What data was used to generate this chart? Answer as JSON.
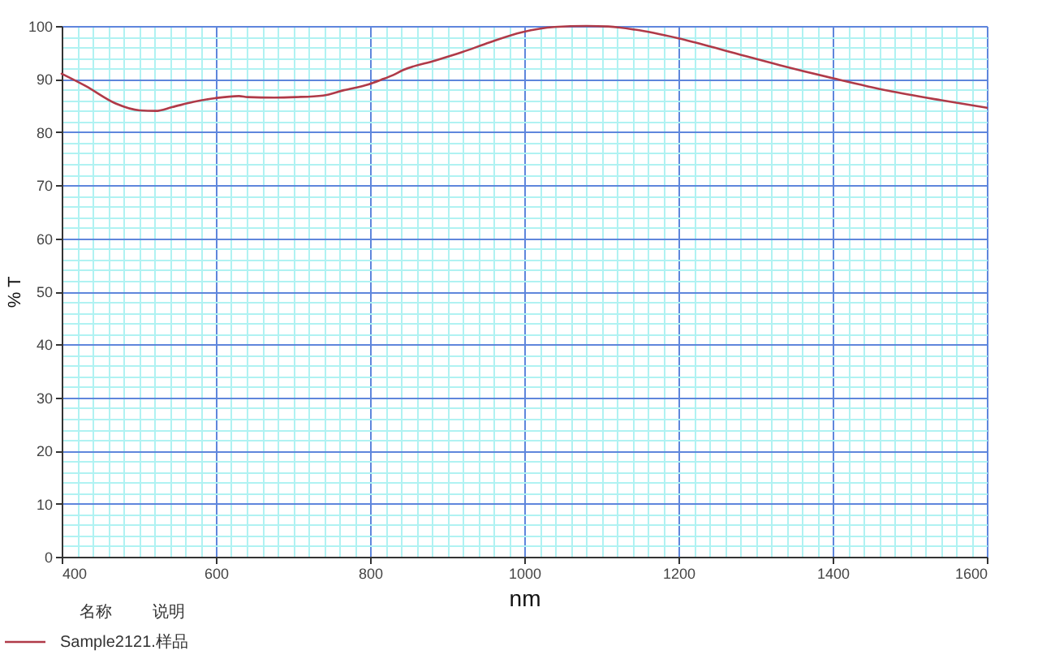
{
  "chart_data": {
    "type": "line",
    "xlabel": "nm",
    "ylabel": "% T",
    "legend_title": "名称",
    "annotations": [
      "说明"
    ],
    "xlim": [
      400,
      1600
    ],
    "xticks": [
      400,
      {
        "value": 420,
        "label": null
      },
      {
        "value": 440,
        "label": null
      },
      {
        "value": 460,
        "label": null
      },
      {
        "value": 480,
        "label": null
      },
      {
        "value": 500,
        "label": null
      },
      {
        "value": 520,
        "label": null
      },
      {
        "value": 540,
        "label": null
      },
      {
        "value": 560,
        "label": null
      },
      {
        "value": 580,
        "label": null
      },
      600,
      {
        "value": 620,
        "label": null
      },
      {
        "value": 640,
        "label": null
      },
      {
        "value": 660,
        "label": null
      },
      {
        "value": 680,
        "label": null
      },
      {
        "value": 700,
        "label": null
      },
      {
        "value": 720,
        "label": null
      },
      {
        "value": 740,
        "label": null
      },
      {
        "value": 760,
        "label": null
      },
      {
        "value": 780,
        "label": null
      },
      800,
      {
        "value": 820,
        "label": null
      },
      {
        "value": 840,
        "label": null
      },
      {
        "value": 860,
        "label": null
      },
      {
        "value": 880,
        "label": null
      },
      {
        "value": 900,
        "label": null
      },
      {
        "value": 920,
        "label": null
      },
      {
        "value": 940,
        "label": null
      },
      {
        "value": 960,
        "label": null
      },
      {
        "value": 980,
        "label": null
      },
      1000,
      {
        "value": 1020,
        "label": null
      },
      {
        "value": 1040,
        "label": null
      },
      {
        "value": 1060,
        "label": null
      },
      {
        "value": 1080,
        "label": null
      },
      {
        "value": 1100,
        "label": null
      },
      {
        "value": 1120,
        "label": null
      },
      {
        "value": 1140,
        "label": null
      },
      {
        "value": 1160,
        "label": null
      },
      {
        "value": 1180,
        "label": null
      },
      1200,
      {
        "value": 1220,
        "label": null
      },
      {
        "value": 1240,
        "label": null
      },
      {
        "value": 1260,
        "label": null
      },
      {
        "value": 1280,
        "label": null
      },
      {
        "value": 1300,
        "label": null
      },
      {
        "value": 1320,
        "label": null
      },
      {
        "value": 1340,
        "label": null
      },
      {
        "value": 1360,
        "label": null
      },
      {
        "value": 1380,
        "label": null
      },
      1400,
      {
        "value": 1420,
        "label": null
      },
      {
        "value": 1440,
        "label": null
      },
      {
        "value": 1460,
        "label": null
      },
      {
        "value": 1480,
        "label": null
      },
      {
        "value": 1500,
        "label": null
      },
      {
        "value": 1520,
        "label": null
      },
      {
        "value": 1540,
        "label": null
      },
      {
        "value": 1560,
        "label": null
      },
      {
        "value": 1580,
        "label": null
      },
      1600
    ],
    "ylim": [
      0,
      100
    ],
    "yticks": [
      0,
      {
        "value": 2,
        "label": null
      },
      {
        "value": 4,
        "label": null
      },
      {
        "value": 6,
        "label": null
      },
      {
        "value": 8,
        "label": null
      },
      10,
      {
        "value": 12,
        "label": null
      },
      {
        "value": 14,
        "label": null
      },
      {
        "value": 16,
        "label": null
      },
      {
        "value": 18,
        "label": null
      },
      20,
      {
        "value": 22,
        "label": null
      },
      {
        "value": 24,
        "label": null
      },
      {
        "value": 26,
        "label": null
      },
      {
        "value": 28,
        "label": null
      },
      30,
      {
        "value": 32,
        "label": null
      },
      {
        "value": 34,
        "label": null
      },
      {
        "value": 36,
        "label": null
      },
      {
        "value": 38,
        "label": null
      },
      40,
      {
        "value": 42,
        "label": null
      },
      {
        "value": 44,
        "label": null
      },
      {
        "value": 46,
        "label": null
      },
      {
        "value": 48,
        "label": null
      },
      50,
      {
        "value": 52,
        "label": null
      },
      {
        "value": 54,
        "label": null
      },
      {
        "value": 56,
        "label": null
      },
      {
        "value": 58,
        "label": null
      },
      60,
      {
        "value": 62,
        "label": null
      },
      {
        "value": 64,
        "label": null
      },
      {
        "value": 66,
        "label": null
      },
      {
        "value": 68,
        "label": null
      },
      70,
      {
        "value": 72,
        "label": null
      },
      {
        "value": 74,
        "label": null
      },
      {
        "value": 76,
        "label": null
      },
      {
        "value": 78,
        "label": null
      },
      80,
      {
        "value": 82,
        "label": null
      },
      {
        "value": 84,
        "label": null
      },
      {
        "value": 86,
        "label": null
      },
      {
        "value": 88,
        "label": null
      },
      90,
      {
        "value": 92,
        "label": null
      },
      {
        "value": 94,
        "label": null
      },
      {
        "value": 96,
        "label": null
      },
      {
        "value": 98,
        "label": null
      },
      100
    ],
    "grid": true,
    "legend": "bottom left",
    "x": [
      400,
      431,
      470,
      501,
      522,
      543,
      571,
      599,
      630,
      641,
      676,
      704,
      739,
      766,
      798,
      815,
      829,
      843,
      885,
      920,
      955,
      997,
      1039,
      1081,
      1109,
      1144,
      1199,
      1262,
      1332,
      1402,
      1472,
      1541,
      1600
    ],
    "series": [
      {
        "name": "Sample2121.样品",
        "color": "#b03a48",
        "values": [
          91.0,
          88.7,
          85.4,
          84.1,
          84.0,
          84.7,
          85.7,
          86.4,
          86.8,
          86.6,
          86.5,
          86.6,
          86.9,
          87.9,
          89.0,
          89.9,
          90.7,
          91.7,
          93.5,
          95.1,
          96.9,
          98.8,
          99.8,
          100.0,
          99.9,
          99.3,
          97.7,
          95.3,
          92.6,
          90.1,
          87.8,
          86.0,
          84.6
        ]
      }
    ]
  }
}
